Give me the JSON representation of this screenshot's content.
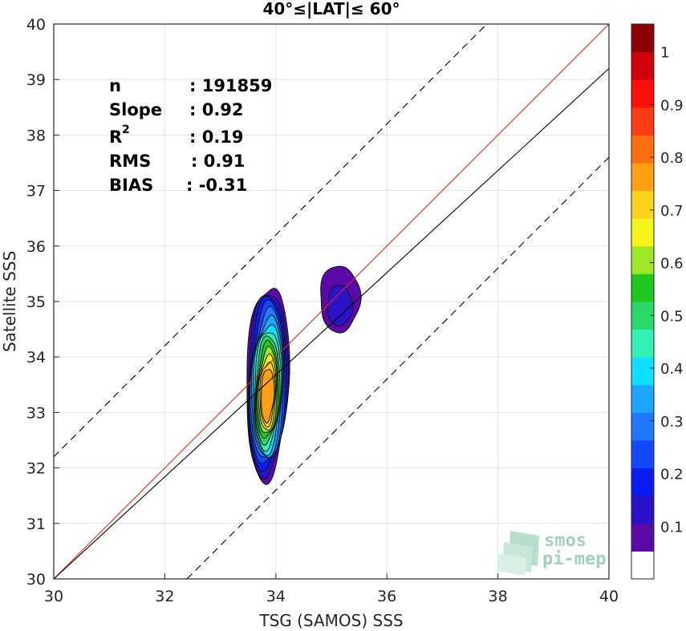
{
  "chart_data": {
    "type": "heatmap",
    "title": "40°≤|LAT|≤ 60°",
    "xlabel": "TSG (SAMOS) SSS",
    "ylabel": "Satellite SSS",
    "xlim": [
      30,
      40
    ],
    "ylim": [
      30,
      40
    ],
    "xticks": [
      30,
      32,
      34,
      36,
      38,
      40
    ],
    "yticks": [
      30,
      31,
      32,
      33,
      34,
      35,
      36,
      37,
      38,
      39,
      40
    ],
    "grid": true,
    "stats": [
      {
        "label": "n",
        "value": ": 191859"
      },
      {
        "label": "Slope",
        "value": ": 0.92"
      },
      {
        "label": "R",
        "sup": "2",
        "value": ": 0.19"
      },
      {
        "label": "RMS",
        "value": ": 0.91"
      },
      {
        "label": "BIAS",
        "value": ": -0.31"
      }
    ],
    "lines": [
      {
        "name": "identity",
        "color": "#e8221f",
        "dash": false,
        "slope": 1.0,
        "intercept": 0.0
      },
      {
        "name": "fit",
        "color": "#000000",
        "dash": false,
        "slope": 0.92,
        "intercept": 2.4
      },
      {
        "name": "upper",
        "color": "#000000",
        "dash": true,
        "slope": 1.0,
        "intercept": 2.2
      },
      {
        "name": "lower",
        "color": "#000000",
        "dash": true,
        "slope": 1.0,
        "intercept": -2.4
      }
    ],
    "colorbar": {
      "ticks": [
        0.1,
        0.2,
        0.3,
        0.4,
        0.5,
        0.6,
        0.7,
        0.8,
        0.9,
        1
      ],
      "tick_labels": [
        "0.1",
        "0.2",
        "0.3",
        "0.4",
        "0.5",
        "0.6",
        "0.7",
        "0.8",
        "0.9",
        "1"
      ],
      "colors": [
        "#ffffff",
        "#5a0aa6",
        "#2a12c8",
        "#0a1cf0",
        "#1448ff",
        "#1f78ff",
        "#1ba6ff",
        "#10e0ff",
        "#33f0b4",
        "#28d96a",
        "#1fc81f",
        "#9ee628",
        "#f5f51a",
        "#ffd21e",
        "#ffa014",
        "#ff6e0f",
        "#ff3c14",
        "#ff0f0a",
        "#d2000a",
        "#8c0000"
      ]
    },
    "contours": [
      {
        "cx": 33.85,
        "cy": 33.55,
        "sx": 0.38,
        "sy": 1.75,
        "skew": 0.15,
        "levels": 14
      },
      {
        "cx": 35.15,
        "cy": 35.05,
        "sx": 0.36,
        "sy": 0.6,
        "skew": 0.0,
        "levels": 2
      }
    ],
    "watermark": {
      "line1": "smos",
      "line2": "pi-mep"
    }
  }
}
